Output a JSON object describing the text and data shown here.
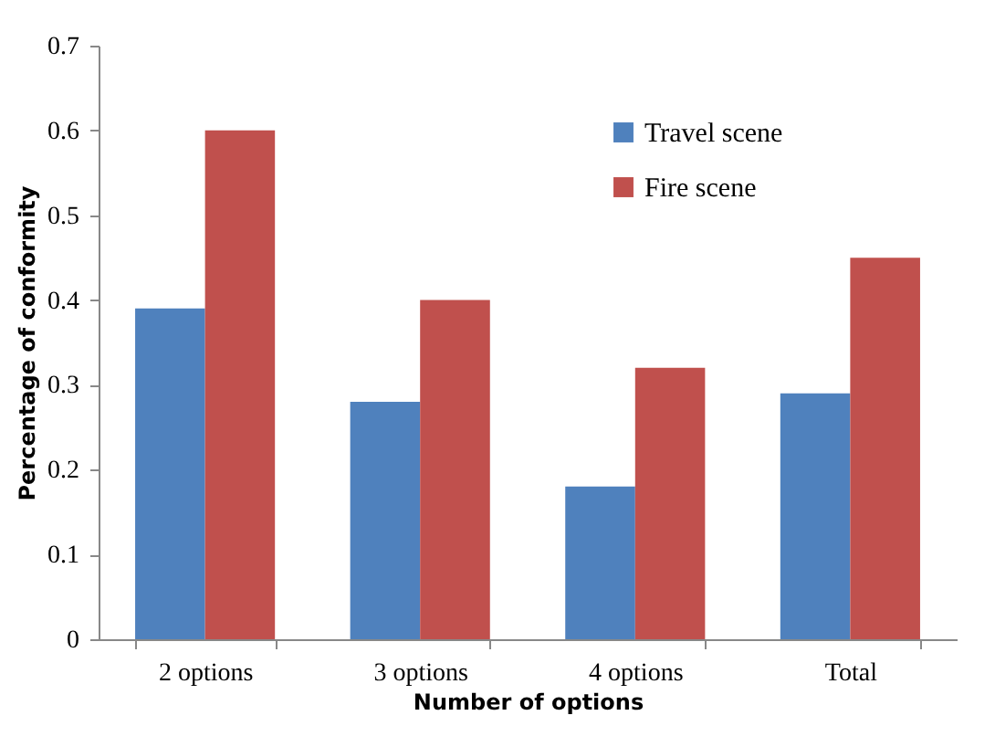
{
  "chart_data": {
    "type": "bar",
    "xlabel": "Number of options",
    "ylabel": "Percentage of conformity",
    "categories": [
      "2 options",
      "3 options",
      "4 options",
      "Total"
    ],
    "series": [
      {
        "name": "Travel scene",
        "color": "#4f81bd",
        "values": [
          0.39,
          0.28,
          0.18,
          0.29
        ]
      },
      {
        "name": "Fire scene",
        "color": "#c0504d",
        "values": [
          0.6,
          0.4,
          0.32,
          0.45
        ]
      }
    ],
    "ylim": [
      0,
      0.7
    ],
    "yticks": [
      0,
      0.1,
      0.2,
      0.3,
      0.4,
      0.5,
      0.6,
      0.7
    ],
    "legend": "top right",
    "grid": false
  }
}
